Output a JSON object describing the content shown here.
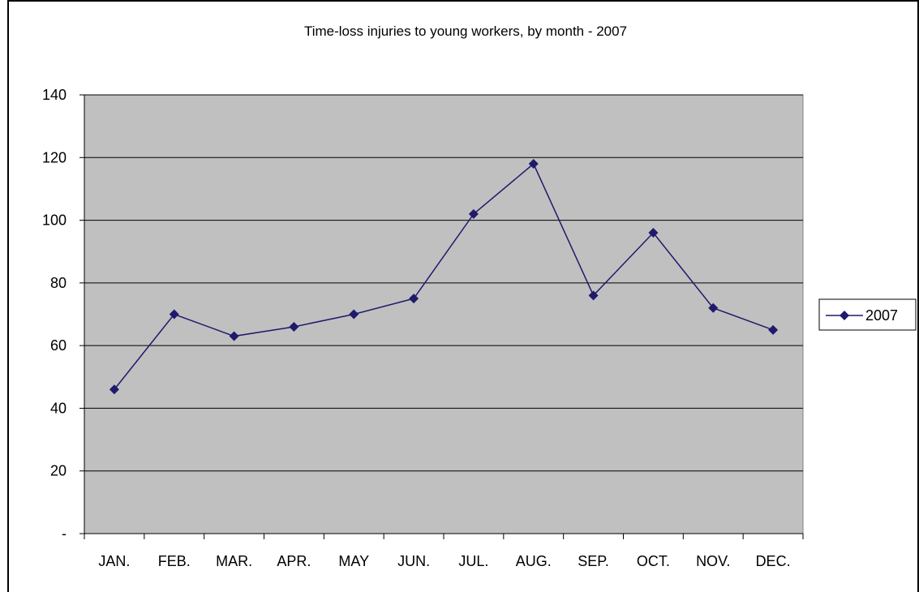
{
  "chart_data": {
    "type": "line",
    "title": "Time-loss injuries to young workers, by month - 2007",
    "xlabel": "",
    "ylabel": "",
    "categories": [
      "JAN.",
      "FEB.",
      "MAR.",
      "APR.",
      "MAY",
      "JUN.",
      "JUL.",
      "AUG.",
      "SEP.",
      "OCT.",
      "NOV.",
      "DEC."
    ],
    "series": [
      {
        "name": "2007",
        "values": [
          46,
          70,
          63,
          66,
          70,
          75,
          102,
          118,
          76,
          96,
          72,
          65
        ],
        "color": "#1f1a6b"
      }
    ],
    "ylim": [
      0,
      140
    ],
    "yticks": [
      {
        "value": 0,
        "label": "-"
      },
      {
        "value": 20,
        "label": "20"
      },
      {
        "value": 40,
        "label": "40"
      },
      {
        "value": 60,
        "label": "60"
      },
      {
        "value": 80,
        "label": "80"
      },
      {
        "value": 100,
        "label": "100"
      },
      {
        "value": 120,
        "label": "120"
      },
      {
        "value": 140,
        "label": "140"
      }
    ],
    "grid": true,
    "legend": "right",
    "plot_background": "#c0c0c0",
    "marker": "diamond"
  }
}
